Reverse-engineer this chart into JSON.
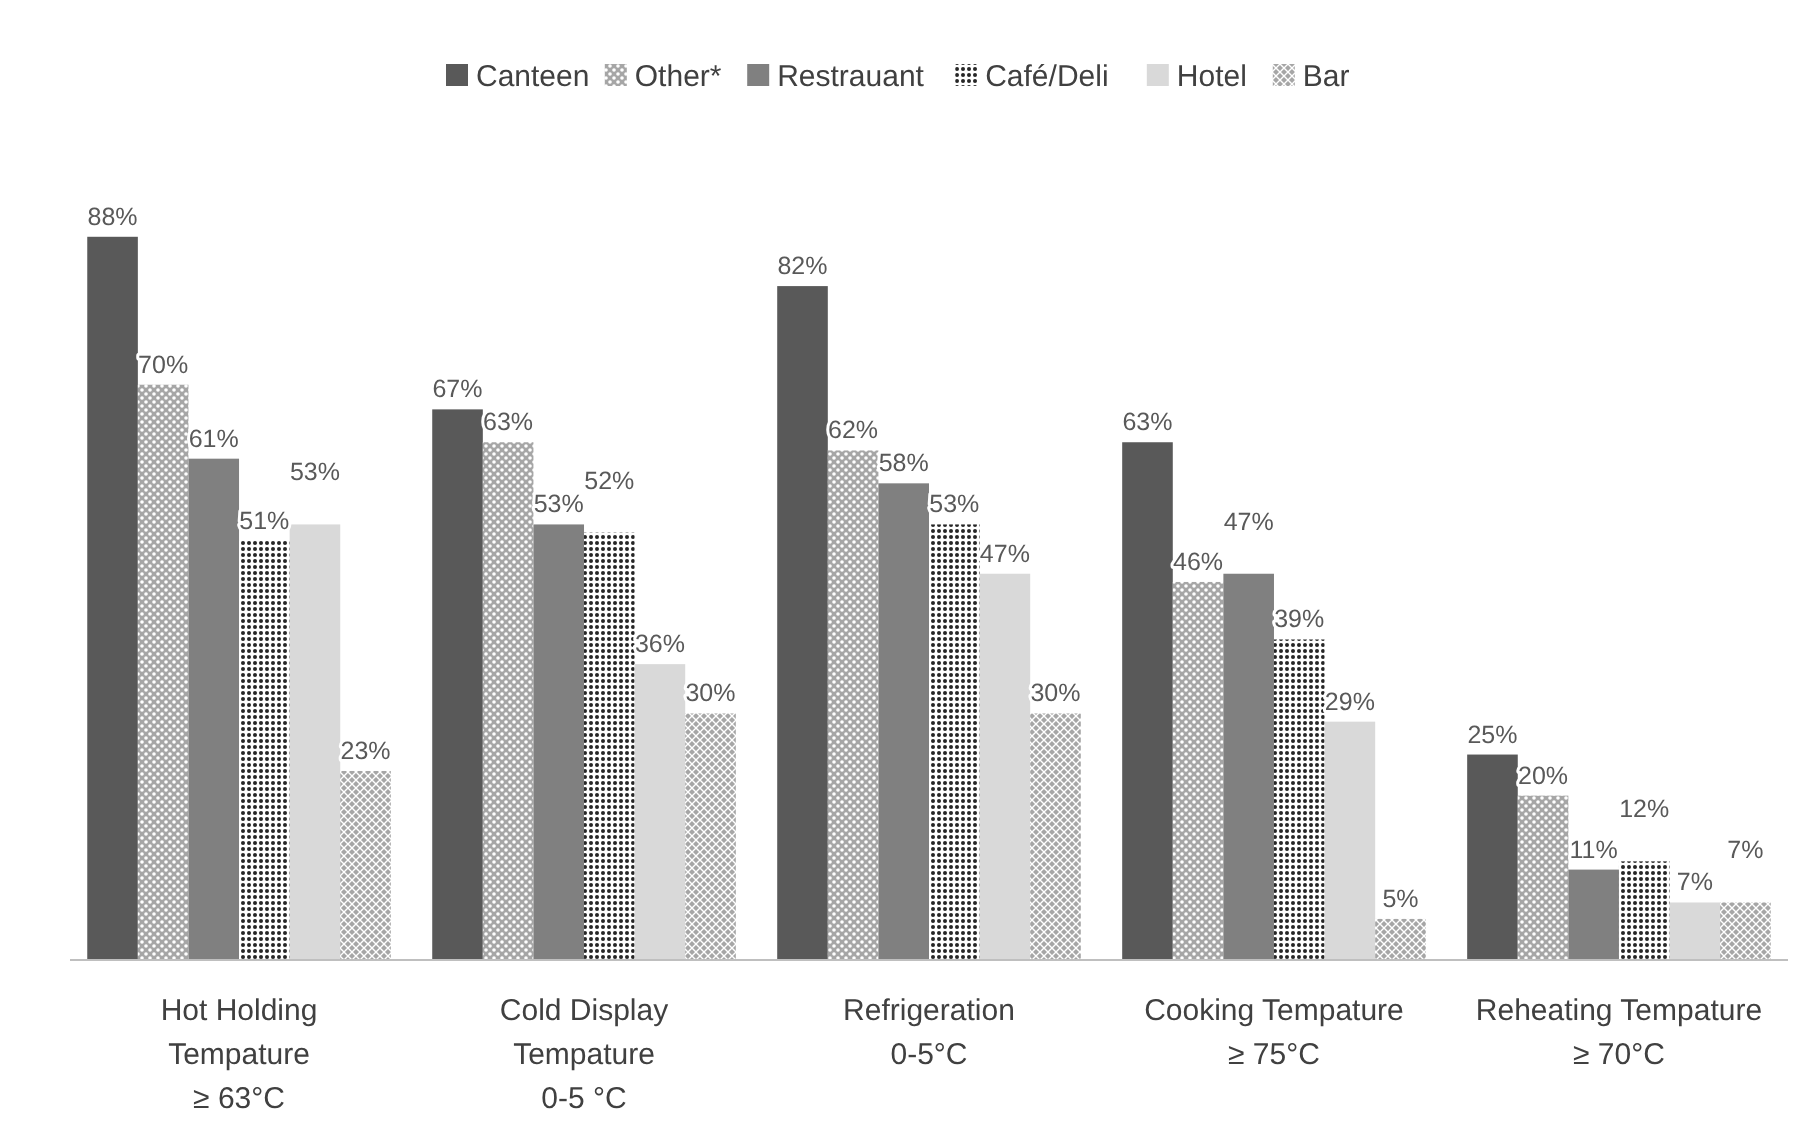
{
  "chart_data": {
    "type": "bar",
    "categories": [
      "Hot Holding\nTempature\n≥ 63°C",
      "Cold Display\nTempature\n0-5 °C",
      "Refrigeration\n0-5°C",
      "Cooking Tempature\n≥ 75°C",
      "Reheating Tempature\n≥ 70°C"
    ],
    "series": [
      {
        "name": "Canteen",
        "color": "#595959",
        "values": [
          88,
          67,
          82,
          63,
          25
        ],
        "value_labels": [
          "88%",
          "67%",
          "82%",
          "63%",
          "25%"
        ]
      },
      {
        "name": "Other*",
        "color": "#a6a6a6",
        "values": [
          70,
          63,
          62,
          46,
          20
        ],
        "value_labels": [
          "70%",
          "63%",
          "62%",
          "46%",
          "20%"
        ]
      },
      {
        "name": "Restrauant",
        "color": "#808080",
        "values": [
          61,
          53,
          58,
          47,
          11
        ],
        "value_labels": [
          "61%",
          "53%",
          "58%",
          "47%",
          "11%"
        ]
      },
      {
        "name": "Café/Deli",
        "color": "#262626",
        "values": [
          51,
          52,
          53,
          39,
          12
        ],
        "value_labels": [
          "51%",
          "52%",
          "53%",
          "39%",
          "12%"
        ]
      },
      {
        "name": "Hotel",
        "color": "#d9d9d9",
        "values": [
          53,
          36,
          47,
          29,
          7
        ],
        "value_labels": [
          "53%",
          "36%",
          "47%",
          "29%",
          "7%"
        ]
      },
      {
        "name": "Bar",
        "color": "#a6a6a6",
        "values": [
          23,
          30,
          30,
          5,
          7
        ],
        "value_labels": [
          "23%",
          "30%",
          "30%",
          "5%",
          "7%"
        ]
      }
    ],
    "legend": "top",
    "grid": false
  }
}
